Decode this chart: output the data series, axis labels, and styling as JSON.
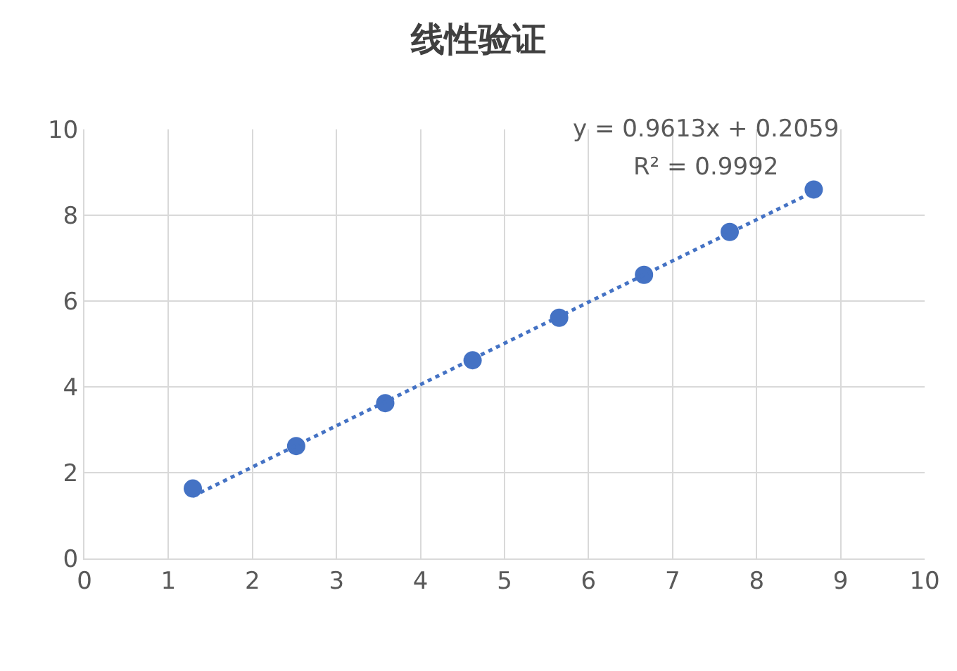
{
  "chart_data": {
    "type": "scatter",
    "title": "线性验证",
    "marker": "circle",
    "grid": true,
    "xlim": [
      0,
      10
    ],
    "xticks": [
      0,
      1,
      2,
      3,
      4,
      5,
      6,
      7,
      8,
      9,
      10
    ],
    "ylim": [
      0,
      10
    ],
    "yticks": [
      0,
      2,
      4,
      6,
      8,
      10
    ],
    "series": [
      {
        "color": "#4472c4",
        "x": [
          1.29,
          2.52,
          3.58,
          4.62,
          5.65,
          6.66,
          7.68,
          8.68
        ],
        "values": [
          1.63,
          2.62,
          3.62,
          4.62,
          5.61,
          6.61,
          7.61,
          8.6
        ]
      },
      {
        "type": "line",
        "color": "#4472c4",
        "line_style": "dotted",
        "marker": "none",
        "x": [
          1.29,
          8.68
        ],
        "values": [
          1.45,
          8.55
        ]
      }
    ],
    "annotations": [
      "y = 0.9613x + 0.2059",
      "R² = 0.9992"
    ]
  }
}
